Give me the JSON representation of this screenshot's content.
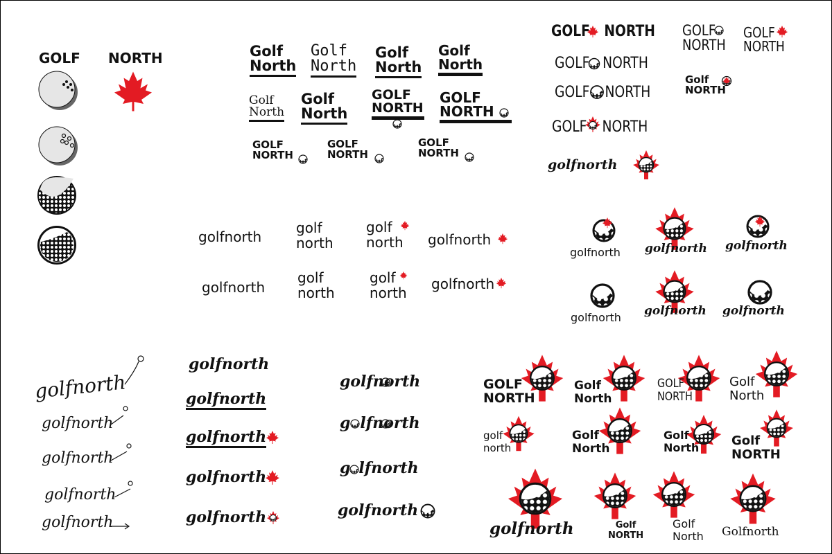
{
  "colors": {
    "ink": "#111111",
    "maple": "#e31b23",
    "ball_gray": "#e6e6e6"
  },
  "brand": {
    "golf_upper": "GOLF",
    "north_upper": "NORTH",
    "golf_title": "Golf",
    "north_title": "North",
    "golf_lower": "golf",
    "north_lower": "north",
    "golfnorth": "golfnorth",
    "Golfnorth": "Golfnorth",
    "lfnorth": "lfnorth",
    "nrth": "rth",
    "go": "g",
    "go2": "go"
  },
  "icons": [
    "golf-ball-icon",
    "maple-leaf-icon",
    "arrow-swoosh-icon"
  ]
}
